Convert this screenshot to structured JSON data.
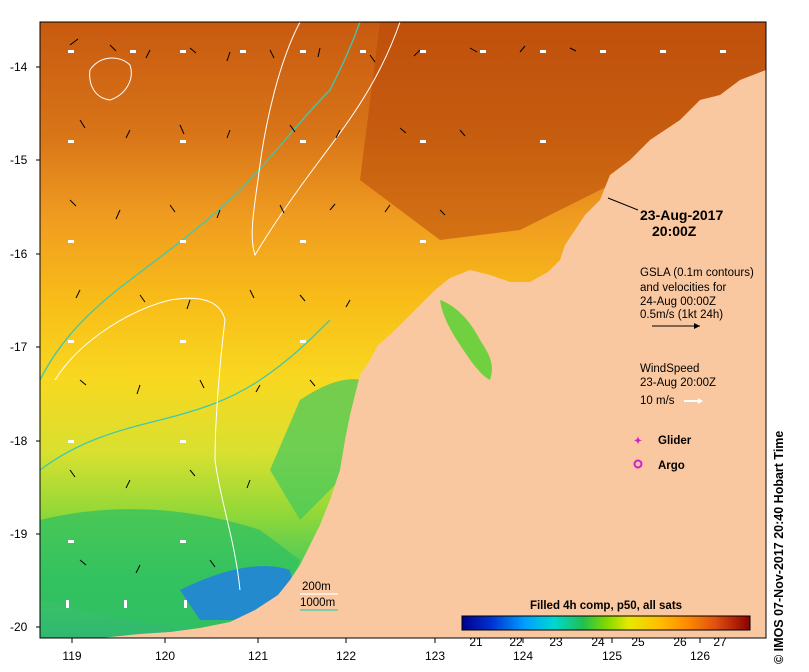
{
  "map": {
    "timestamp_date": "23-Aug-2017",
    "timestamp_time": "20:00Z",
    "gsla": {
      "line1": "GSLA (0.1m contours)",
      "line2": "and velocities for",
      "line3": "24-Aug 00:00Z",
      "scale": "0.5m/s (1kt 24h)"
    },
    "wind": {
      "line1": "WindSpeed",
      "line2": "23-Aug 20:00Z",
      "scale": "10 m/s"
    },
    "legend": {
      "glider": "Glider",
      "argo": "Argo",
      "glider_color": "#d020d0",
      "argo_color": "#d020d0"
    },
    "isobaths": {
      "depth1": "200m",
      "depth2": "1000m",
      "depth1_color": "#ffffff",
      "depth2_color": "#40c8b0"
    },
    "lat_ticks": [
      "-14",
      "-15",
      "-16",
      "-17",
      "-18",
      "-19",
      "-20"
    ],
    "lon_ticks": [
      "119",
      "120",
      "121",
      "122",
      "123",
      "124",
      "125",
      "126"
    ],
    "colorbar": {
      "title": "Filled 4h comp, p50, all sats",
      "labels": [
        "21",
        "22",
        "23",
        "24",
        "25",
        "26",
        "27"
      ],
      "colors": [
        "#00008c",
        "#0040e0",
        "#00a0ff",
        "#00d8d8",
        "#20c060",
        "#60d000",
        "#c8e000",
        "#ffe000",
        "#ffb000",
        "#ff8000",
        "#e05000",
        "#b02000",
        "#8c0000"
      ]
    },
    "land_color": "#fac8a0",
    "credit": "© IMOS 07-Nov-2017 20:40 Hobart Time"
  }
}
